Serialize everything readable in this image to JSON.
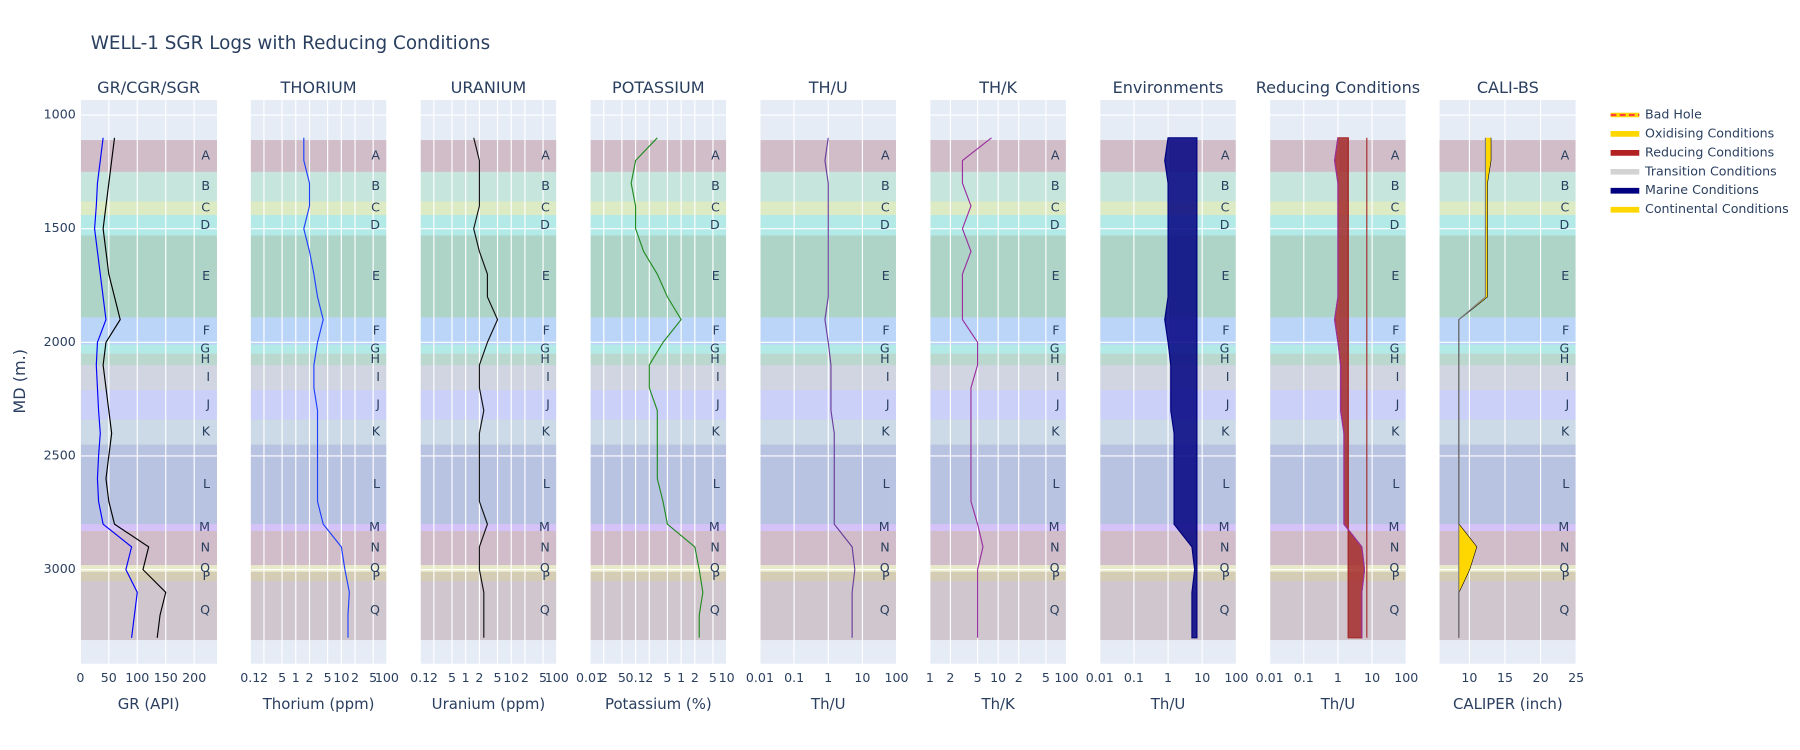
{
  "chart_data": {
    "type": "well-log",
    "title": "WELL-1 SGR Logs with Reducing Conditions",
    "ylabel": "MD (m.)",
    "ylim": [
      934,
      3414
    ],
    "y_reversed": true,
    "yticks": [
      1000,
      1500,
      2000,
      2500,
      3000
    ],
    "grid": true,
    "depths": [
      1100,
      1200,
      1300,
      1400,
      1500,
      1600,
      1700,
      1800,
      1900,
      2000,
      2100,
      2200,
      2300,
      2400,
      2500,
      2600,
      2700,
      2800,
      2900,
      3000,
      3100,
      3200,
      3300
    ],
    "zones": [
      {
        "name": "A",
        "top": 1110,
        "base": 1250,
        "color": "#a0505a"
      },
      {
        "name": "B",
        "top": 1250,
        "base": 1380,
        "color": "#7fd4a0"
      },
      {
        "name": "C",
        "top": 1380,
        "base": 1440,
        "color": "#c8e850"
      },
      {
        "name": "D",
        "top": 1440,
        "base": 1530,
        "color": "#40e0c0"
      },
      {
        "name": "E",
        "top": 1530,
        "base": 1890,
        "color": "#2e9a5a"
      },
      {
        "name": "F",
        "top": 1890,
        "base": 2010,
        "color": "#5aa0ff"
      },
      {
        "name": "G",
        "top": 2010,
        "base": 2050,
        "color": "#40e0c0"
      },
      {
        "name": "H",
        "top": 2050,
        "base": 2100,
        "color": "#5aaa70"
      },
      {
        "name": "I",
        "top": 2100,
        "base": 2210,
        "color": "#a0a0b0"
      },
      {
        "name": "J",
        "top": 2210,
        "base": 2340,
        "color": "#9090ff"
      },
      {
        "name": "K",
        "top": 2340,
        "base": 2450,
        "color": "#90b0c0"
      },
      {
        "name": "L",
        "top": 2450,
        "base": 2800,
        "color": "#5060b0"
      },
      {
        "name": "M",
        "top": 2800,
        "base": 2830,
        "color": "#b060ff"
      },
      {
        "name": "N",
        "top": 2830,
        "base": 2980,
        "color": "#a05060"
      },
      {
        "name": "O",
        "top": 2980,
        "base": 3010,
        "color": "#f0e060"
      },
      {
        "name": "P",
        "top": 3010,
        "base": 3050,
        "color": "#b08020"
      },
      {
        "name": "Q",
        "top": 3050,
        "base": 3310,
        "color": "#a07070"
      }
    ],
    "legend": [
      {
        "name": "Bad Hole",
        "color": "#ff4040",
        "dash": true
      },
      {
        "name": "Oxidising Conditions",
        "color": "#ffd700"
      },
      {
        "name": "Reducing Conditions",
        "color": "#b22222"
      },
      {
        "name": "Transition Conditions",
        "color": "#d3d3d3"
      },
      {
        "name": "Marine Conditions",
        "color": "#000080"
      },
      {
        "name": "Continental Conditions",
        "color": "#ffd700"
      }
    ],
    "tracks": [
      {
        "title": "GR/CGR/SGR",
        "xlabel": "GR (API)",
        "log": false,
        "xlim": [
          0,
          240
        ],
        "xticks": [
          0,
          50,
          100,
          150,
          200
        ],
        "series": [
          {
            "color": "#000000",
            "values": [
              60,
              55,
              50,
              45,
              40,
              45,
              50,
              60,
              70,
              45,
              40,
              45,
              50,
              55,
              50,
              45,
              50,
              60,
              120,
              110,
              150,
              140,
              135
            ]
          },
          {
            "color": "#0000ff",
            "values": [
              40,
              35,
              30,
              28,
              25,
              30,
              35,
              40,
              45,
              30,
              28,
              30,
              32,
              35,
              32,
              30,
              32,
              40,
              90,
              80,
              100,
              95,
              90
            ]
          }
        ]
      },
      {
        "title": "THORIUM",
        "xlabel": "Thorium (ppm)",
        "log": true,
        "xlim": [
          0.1,
          100
        ],
        "xticks": [
          0.1,
          {
            "value": 0.2,
            "label": "2"
          },
          {
            "value": 0.5,
            "label": "5"
          },
          1,
          {
            "value": 2,
            "label": "2"
          },
          {
            "value": 5,
            "label": "5"
          },
          10,
          {
            "value": 20,
            "label": "2"
          },
          {
            "value": 50,
            "label": "5"
          },
          100
        ],
        "series": [
          {
            "color": "#1f3fff",
            "values": [
              1.5,
              1.5,
              2,
              2,
              1.5,
              2,
              2.5,
              3,
              4,
              3,
              2.5,
              2.5,
              3,
              3,
              3,
              3,
              3,
              4,
              10,
              12,
              15,
              14,
              14
            ]
          }
        ]
      },
      {
        "title": "URANIUM",
        "xlabel": "Uranium (ppm)",
        "log": true,
        "xlim": [
          0.1,
          100
        ],
        "xticks": [
          0.1,
          {
            "value": 0.2,
            "label": "2"
          },
          {
            "value": 0.5,
            "label": "5"
          },
          1,
          {
            "value": 2,
            "label": "2"
          },
          {
            "value": 5,
            "label": "5"
          },
          10,
          {
            "value": 20,
            "label": "2"
          },
          {
            "value": 50,
            "label": "5"
          },
          100
        ],
        "series": [
          {
            "color": "#111111",
            "values": [
              1.5,
              2,
              2,
              2,
              1.5,
              2,
              3,
              3,
              5,
              3,
              2,
              2,
              2.5,
              2,
              2,
              2,
              2,
              3,
              2,
              2,
              2.5,
              2.5,
              2.5
            ]
          }
        ]
      },
      {
        "title": "POTASSIUM",
        "xlabel": "Potassium (%)",
        "log": true,
        "xlim": [
          0.01,
          10
        ],
        "xticks": [
          0.01,
          {
            "value": 0.02,
            "label": "2"
          },
          {
            "value": 0.05,
            "label": "5"
          },
          0.1,
          {
            "value": 0.2,
            "label": "2"
          },
          {
            "value": 0.5,
            "label": "5"
          },
          1,
          {
            "value": 2,
            "label": "2"
          },
          {
            "value": 5,
            "label": "5"
          },
          10
        ],
        "series": [
          {
            "color": "#228b22",
            "values": [
              0.3,
              0.1,
              0.08,
              0.1,
              0.1,
              0.15,
              0.3,
              0.5,
              1,
              0.4,
              0.2,
              0.2,
              0.3,
              0.3,
              0.3,
              0.3,
              0.4,
              0.5,
              2,
              2.5,
              3,
              2.5,
              2.5
            ]
          }
        ]
      },
      {
        "title": "TH/U",
        "xlabel": "Th/U",
        "log": true,
        "xlim": [
          0.01,
          100
        ],
        "xticks": [
          0.01,
          0.1,
          1,
          10,
          100
        ],
        "series": [
          {
            "color": "#6a3d9a",
            "values": [
              1,
              0.8,
              1,
              1,
              1,
              1,
              1,
              1,
              0.8,
              1,
              1.2,
              1.2,
              1.2,
              1.5,
              1.5,
              1.5,
              1.5,
              1.5,
              5,
              6,
              5,
              5,
              5
            ]
          }
        ]
      },
      {
        "title": "TH/K",
        "xlabel": "Th/K",
        "log": true,
        "xlim": [
          1,
          100
        ],
        "xticks": [
          1,
          {
            "value": 2,
            "label": "2"
          },
          {
            "value": 5,
            "label": "5"
          },
          10,
          {
            "value": 20,
            "label": "2"
          },
          {
            "value": 50,
            "label": "5"
          },
          100
        ],
        "series": [
          {
            "color": "#9b30a0",
            "values": [
              8,
              3,
              3,
              4,
              3,
              4,
              3,
              3,
              3,
              5,
              5,
              4,
              4,
              4,
              4,
              4,
              4,
              5,
              6,
              5,
              5,
              5,
              5
            ]
          }
        ]
      },
      {
        "title": "Environments",
        "xlabel": "Th/U",
        "log": true,
        "xlim": [
          0.01,
          100
        ],
        "xticks": [
          0.01,
          0.1,
          1,
          10,
          100
        ],
        "series": [
          {
            "color": "#000080",
            "fill_to": 7,
            "values": [
              1,
              0.8,
              1,
              1,
              1,
              1,
              1,
              1,
              0.8,
              1,
              1.2,
              1.2,
              1.2,
              1.5,
              1.5,
              1.5,
              1.5,
              1.5,
              5,
              6,
              5,
              5,
              5
            ]
          }
        ]
      },
      {
        "title": "Reducing Conditions",
        "xlabel": "Th/U",
        "log": true,
        "xlim": [
          0.01,
          100
        ],
        "xticks": [
          0.01,
          0.1,
          1,
          10,
          100
        ],
        "cutoffs": [
          {
            "value": 2,
            "color": "#a52a2a"
          },
          {
            "value": 7,
            "color": "#a52a2a"
          }
        ],
        "series": [
          {
            "color": "#a52a2a",
            "fill_to": 2,
            "values": [
              1,
              0.8,
              1,
              1,
              1,
              1,
              1,
              1,
              0.8,
              1,
              1.2,
              1.2,
              1.2,
              1.5,
              1.5,
              1.5,
              1.5,
              1.5,
              5,
              6,
              5,
              5,
              5
            ]
          },
          {
            "color": "#9b30a0",
            "values": [
              1,
              0.8,
              1,
              1,
              1,
              1,
              1,
              1,
              0.8,
              1,
              1.2,
              1.2,
              1.2,
              1.5,
              1.5,
              1.5,
              1.5,
              1.5,
              5,
              6,
              5,
              5,
              5
            ]
          }
        ]
      },
      {
        "title": "CALI-BS",
        "xlabel": "CALIPER (inch)",
        "log": false,
        "xlim": [
          5.8,
          25
        ],
        "xticks": [
          10,
          15,
          20,
          25
        ],
        "series": [
          {
            "color": "#000000",
            "values": [
              13,
              13,
              12.5,
              12.5,
              12.5,
              12.5,
              12.5,
              12.5,
              8.5,
              8.5,
              8.5,
              8.5,
              8.5,
              8.5,
              8.5,
              8.5,
              8.5,
              8.5,
              11,
              10,
              8.5,
              8.5,
              8.5
            ]
          },
          {
            "color": "#808080",
            "fill_between": 0,
            "fill": "#ffd700",
            "values": [
              12.25,
              12.25,
              12.25,
              12.25,
              12.25,
              12.25,
              12.25,
              12.25,
              8.5,
              8.5,
              8.5,
              8.5,
              8.5,
              8.5,
              8.5,
              8.5,
              8.5,
              8.5,
              8.5,
              8.5,
              8.5,
              8.5,
              8.5
            ]
          }
        ]
      }
    ]
  }
}
